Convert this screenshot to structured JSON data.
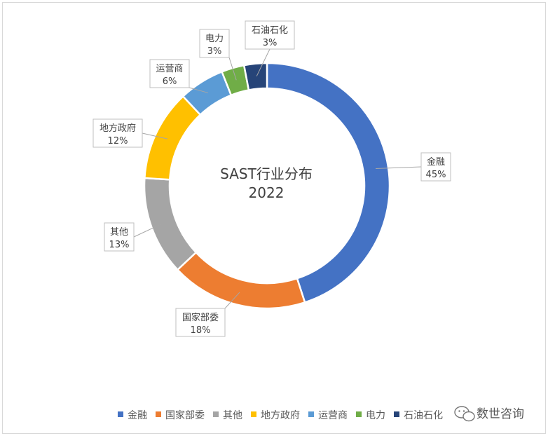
{
  "chart_data": {
    "type": "pie",
    "donut": true,
    "title_lines": [
      "SAST行业分布",
      "2022"
    ],
    "categories": [
      "金融",
      "国家部委",
      "其他",
      "地方政府",
      "运营商",
      "电力",
      "石油石化"
    ],
    "values": [
      45,
      18,
      13,
      12,
      6,
      3,
      3
    ],
    "labels": [
      "45%",
      "18%",
      "13%",
      "12%",
      "6%",
      "3%",
      "3%"
    ],
    "colors": [
      "#4472C4",
      "#ED7D31",
      "#A5A5A5",
      "#FFC000",
      "#5B9BD5",
      "#70AD47",
      "#264478"
    ],
    "legend_position": "bottom"
  },
  "watermark": {
    "text": "数世咨询",
    "icon": "wechat-icon"
  }
}
